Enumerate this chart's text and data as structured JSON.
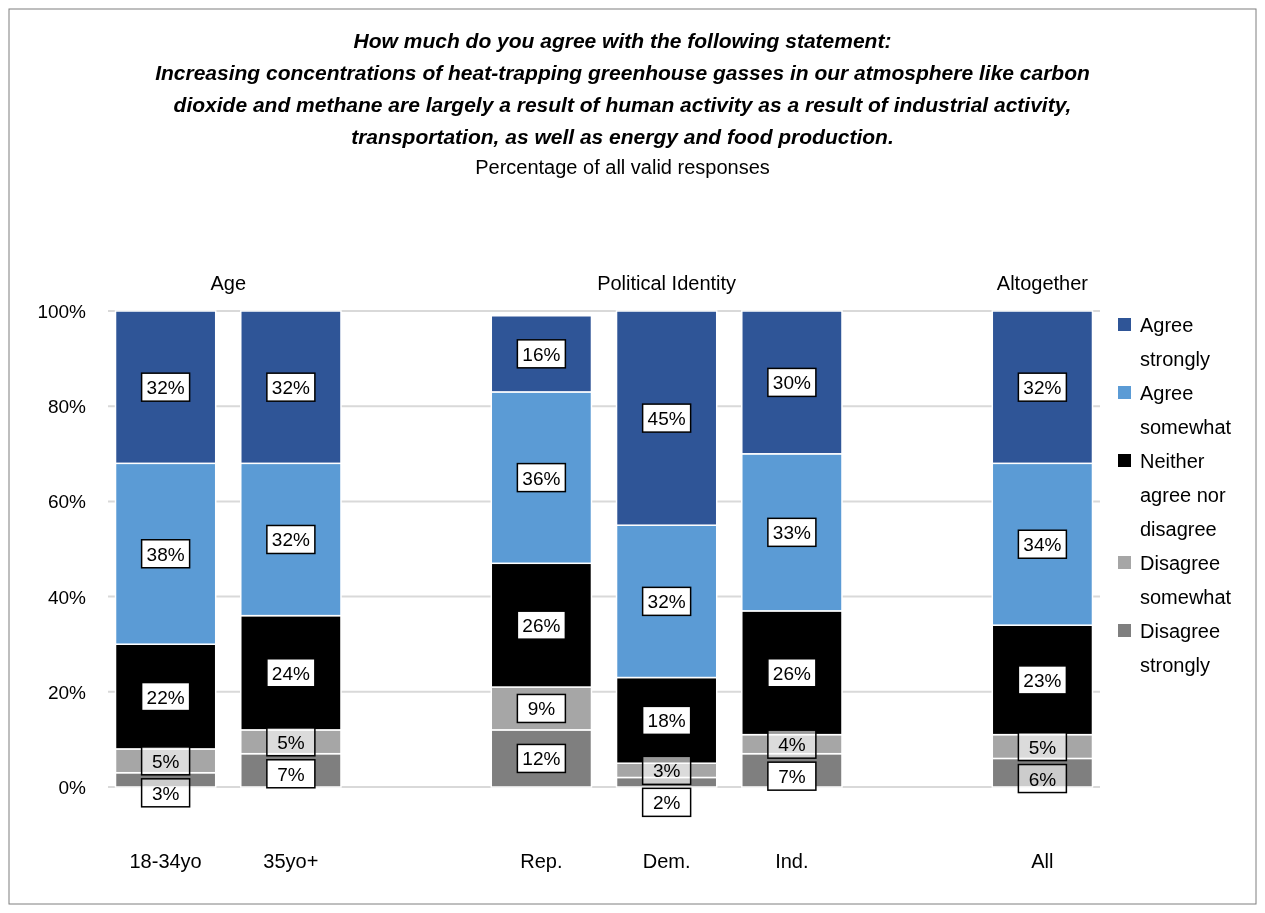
{
  "chart_data": {
    "type": "bar",
    "stacked": true,
    "title": "How much do you agree with the following statement:\nIncreasing concentrations of heat-trapping greenhouse gasses in our atmosphere like carbon\ndioxide and methane are largely a result of human activity as a result of industrial activity,\ntransportation, as well as energy and food production.",
    "subtitle": "Percentage of all valid responses",
    "annotations": [
      "Age",
      "Political Identity",
      "Altogether"
    ],
    "categories": [
      "18-34yo",
      "35yo+",
      null,
      "Rep.",
      "Dem.",
      "Ind.",
      null,
      "All"
    ],
    "series": [
      {
        "name": "Disagree strongly",
        "color": "#7f7f7f",
        "values": [
          3,
          7,
          null,
          12,
          2,
          7,
          null,
          6
        ],
        "value_labels": [
          "3%",
          "7%",
          null,
          "12%",
          "2%",
          "7%",
          null,
          "6%"
        ]
      },
      {
        "name": "Disagree somewhat",
        "color": "#a6a6a6",
        "values": [
          5,
          5,
          null,
          9,
          3,
          4,
          null,
          5
        ],
        "value_labels": [
          "5%",
          "5%",
          null,
          "9%",
          "3%",
          "4%",
          null,
          "5%"
        ]
      },
      {
        "name": "Neither agree nor disagree",
        "color": "#000000",
        "values": [
          22,
          24,
          null,
          26,
          18,
          26,
          null,
          23
        ],
        "value_labels": [
          "22%",
          "24%",
          null,
          "26%",
          "18%",
          "26%",
          null,
          "23%"
        ]
      },
      {
        "name": "Agree somewhat",
        "color": "#5b9bd5",
        "values": [
          38,
          32,
          null,
          36,
          32,
          33,
          null,
          34
        ],
        "value_labels": [
          "38%",
          "32%",
          null,
          "36%",
          "32%",
          "33%",
          null,
          "34%"
        ]
      },
      {
        "name": "Agree strongly",
        "color": "#2f5597",
        "values": [
          32,
          32,
          null,
          16,
          45,
          30,
          null,
          32
        ],
        "value_labels": [
          "32%",
          "32%",
          null,
          "16%",
          "45%",
          "30%",
          null,
          "32%"
        ]
      }
    ],
    "ylim": [
      0,
      100
    ],
    "yticks": [
      {
        "value": 0,
        "label": "0%"
      },
      {
        "value": 20,
        "label": "20%"
      },
      {
        "value": 40,
        "label": "40%"
      },
      {
        "value": 60,
        "label": "60%"
      },
      {
        "value": 80,
        "label": "80%"
      },
      {
        "value": 100,
        "label": "100%"
      }
    ],
    "grid": "y",
    "legend": "right"
  }
}
